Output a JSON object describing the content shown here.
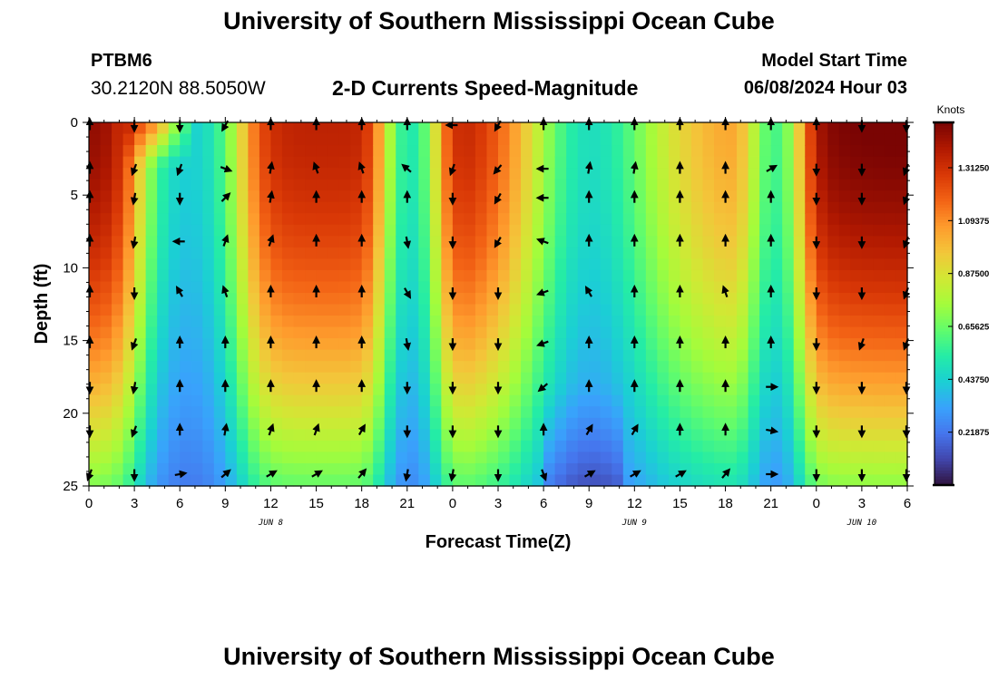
{
  "header": {
    "title": "University of Southern Mississippi Ocean Cube",
    "station_id": "PTBM6",
    "coordinates": "30.2120N  88.5050W",
    "subtitle": "2-D Currents Speed-Magnitude",
    "model_start_label": "Model Start Time",
    "model_start_value": "06/08/2024 Hour 03"
  },
  "footer": {
    "title": "University of Southern Mississippi Ocean Cube"
  },
  "chart_data": {
    "type": "heatmap",
    "title": "2-D Currents Speed-Magnitude",
    "xlabel": "Forecast Time(Z)",
    "ylabel": "Depth (ft)",
    "x_ticks": [
      "0",
      "3",
      "6",
      "9",
      "12",
      "15",
      "18",
      "21",
      "0",
      "3",
      "6",
      "9",
      "12",
      "15",
      "18",
      "21",
      "0",
      "3",
      "6"
    ],
    "x_hours": [
      0,
      3,
      6,
      9,
      12,
      15,
      18,
      21,
      24,
      27,
      30,
      33,
      36,
      39,
      42,
      45,
      48,
      51,
      54
    ],
    "xlim": [
      0,
      54
    ],
    "date_labels": [
      {
        "label": "JUN 8",
        "hour": 12
      },
      {
        "label": "JUN 9",
        "hour": 36
      },
      {
        "label": "JUN 10",
        "hour": 51
      }
    ],
    "y_ticks": [
      0,
      5,
      10,
      15,
      20,
      25
    ],
    "ylim": [
      0,
      25
    ],
    "y_inverted": true,
    "colorbar": {
      "title": "Knots",
      "ticks": [
        "0.21875",
        "0.43750",
        "0.65625",
        "0.87500",
        "1.09375",
        "1.31250"
      ],
      "tick_values": [
        0.21875,
        0.4375,
        0.65625,
        0.875,
        1.09375,
        1.3125
      ],
      "range": [
        0,
        1.5
      ],
      "colors": [
        "#30123b",
        "#4145ab",
        "#4675ed",
        "#39a2fc",
        "#1bcfd4",
        "#24eca6",
        "#61fc6c",
        "#a4fc3b",
        "#d1e834",
        "#f3c63a",
        "#fe9b2d",
        "#f36315",
        "#d93806",
        "#b11901",
        "#7a0403"
      ]
    },
    "arrow_hours": [
      -1,
      3,
      6,
      9,
      12,
      15,
      18,
      21,
      24,
      27,
      30,
      33,
      36,
      39,
      42,
      45,
      48,
      51,
      54
    ],
    "arrow_depths": [
      0,
      3,
      5,
      8,
      11.5,
      15,
      18,
      21,
      24
    ],
    "arrow_directions_deg": [
      [
        0,
        180,
        180,
        210,
        0,
        0,
        0,
        0,
        270,
        210,
        0,
        0,
        0,
        0,
        0,
        0,
        0,
        180,
        180
      ],
      [
        0,
        200,
        200,
        110,
        10,
        340,
        340,
        310,
        200,
        220,
        270,
        10,
        10,
        0,
        0,
        60,
        180,
        180,
        200
      ],
      [
        0,
        190,
        180,
        45,
        10,
        0,
        0,
        0,
        180,
        210,
        270,
        0,
        0,
        0,
        0,
        0,
        180,
        180,
        200
      ],
      [
        0,
        190,
        270,
        20,
        20,
        0,
        0,
        170,
        180,
        210,
        290,
        0,
        0,
        0,
        0,
        0,
        180,
        180,
        200
      ],
      [
        0,
        180,
        330,
        340,
        0,
        0,
        0,
        150,
        180,
        180,
        250,
        330,
        0,
        0,
        340,
        0,
        180,
        180,
        200
      ],
      [
        0,
        200,
        0,
        0,
        0,
        0,
        0,
        170,
        180,
        180,
        250,
        0,
        0,
        0,
        0,
        0,
        180,
        200,
        200
      ],
      [
        180,
        190,
        0,
        0,
        0,
        0,
        0,
        180,
        180,
        180,
        230,
        0,
        0,
        0,
        0,
        90,
        180,
        180,
        180
      ],
      [
        180,
        200,
        0,
        10,
        20,
        20,
        30,
        180,
        180,
        180,
        0,
        30,
        30,
        0,
        0,
        100,
        180,
        180,
        180
      ],
      [
        200,
        180,
        80,
        50,
        60,
        60,
        40,
        190,
        190,
        180,
        160,
        60,
        60,
        60,
        40,
        90,
        180,
        180,
        180
      ]
    ]
  }
}
